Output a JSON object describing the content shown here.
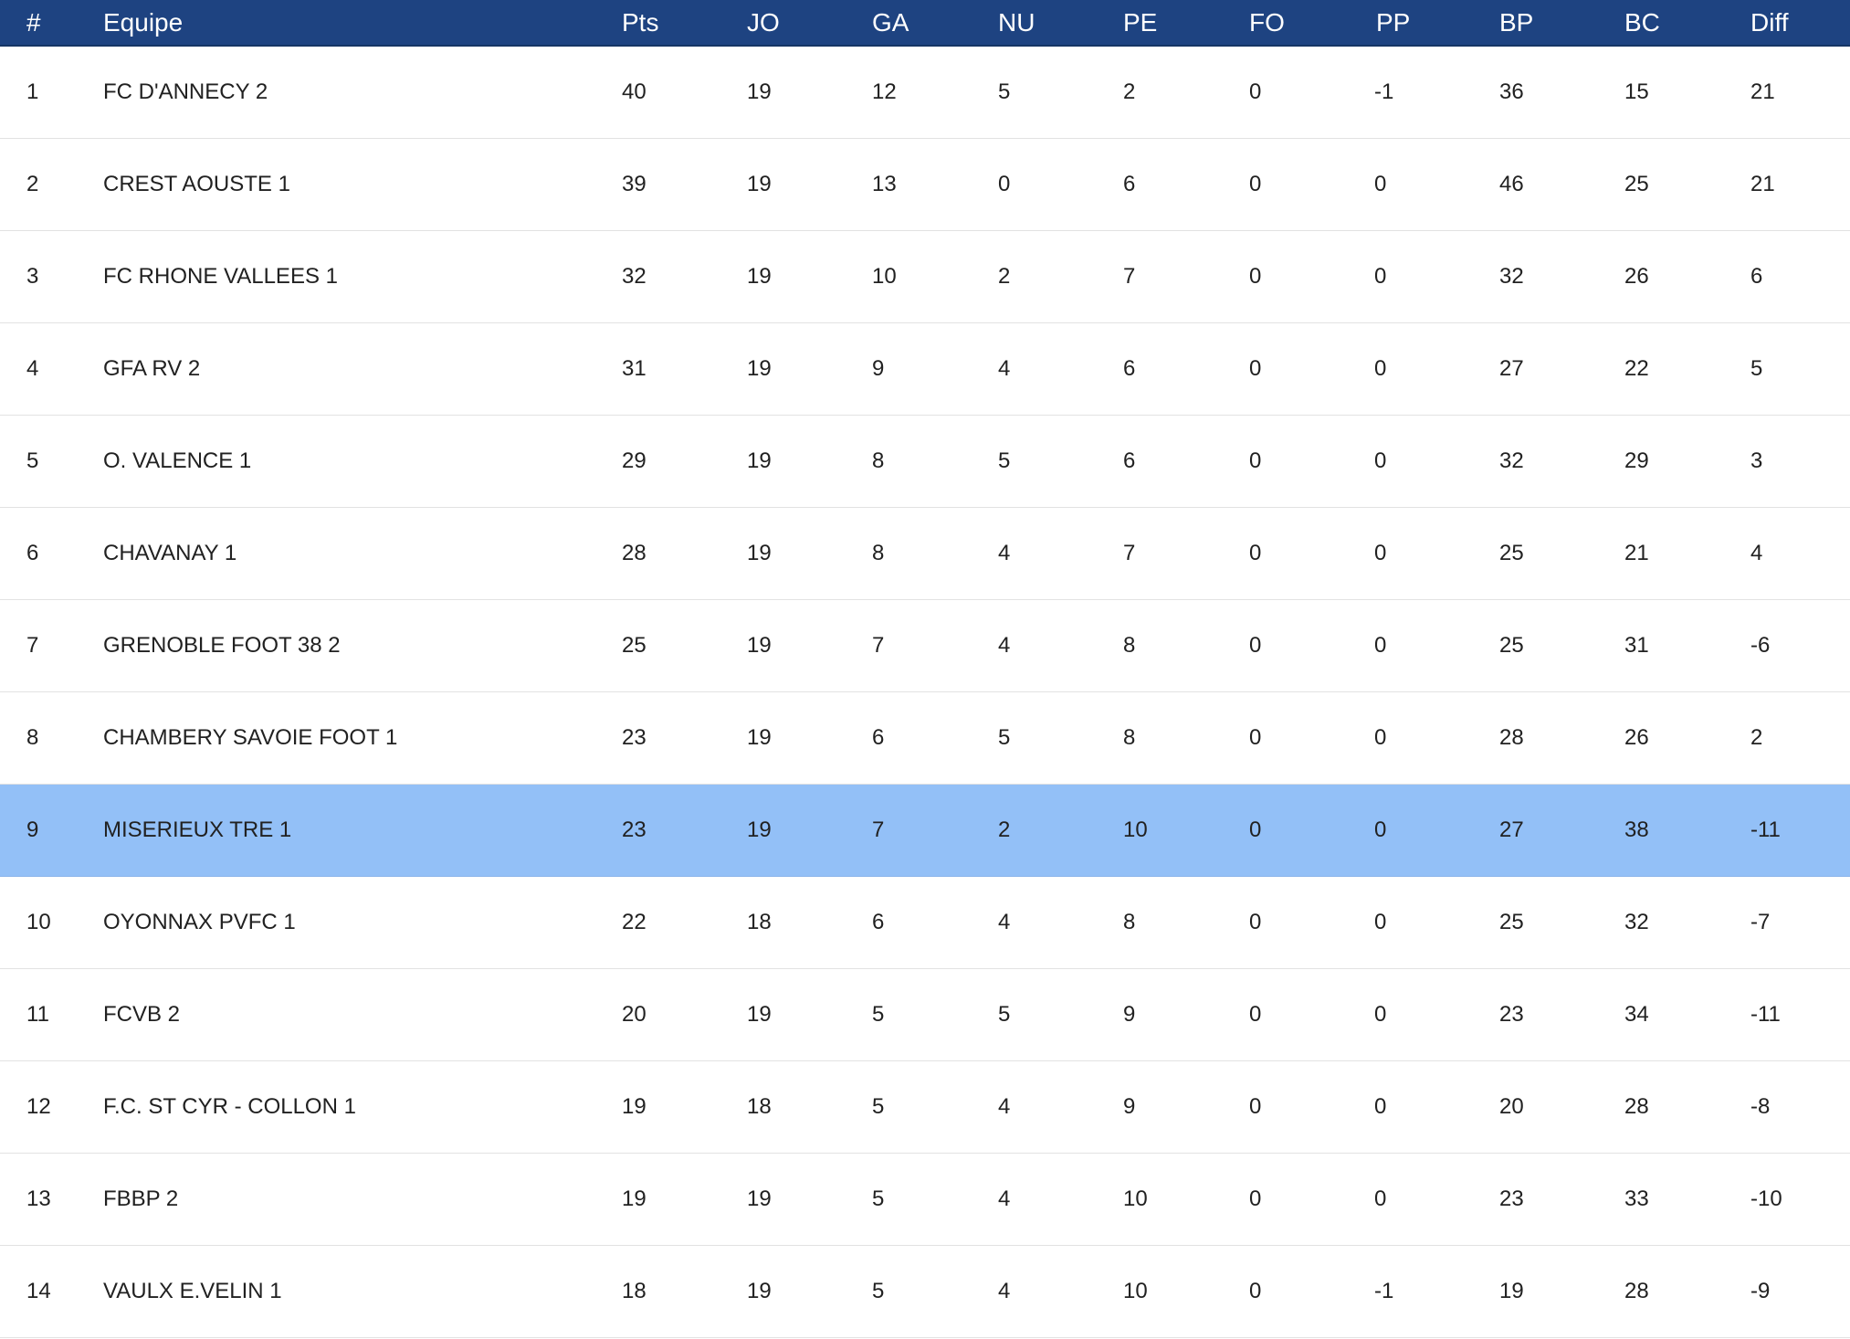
{
  "table": {
    "headers": {
      "rank": "#",
      "team": "Equipe",
      "pts": "Pts",
      "jo": "JO",
      "ga": "GA",
      "nu": "NU",
      "pe": "PE",
      "fo": "FO",
      "pp": "PP",
      "bp": "BP",
      "bc": "BC",
      "diff": "Diff"
    },
    "highlight_rank": "9",
    "rows": [
      {
        "rank": "1",
        "team": "FC D'ANNECY 2",
        "pts": "40",
        "jo": "19",
        "ga": "12",
        "nu": "5",
        "pe": "2",
        "fo": "0",
        "pp": "-1",
        "bp": "36",
        "bc": "15",
        "diff": "21"
      },
      {
        "rank": "2",
        "team": "CREST AOUSTE 1",
        "pts": "39",
        "jo": "19",
        "ga": "13",
        "nu": "0",
        "pe": "6",
        "fo": "0",
        "pp": "0",
        "bp": "46",
        "bc": "25",
        "diff": "21"
      },
      {
        "rank": "3",
        "team": "FC RHONE VALLEES 1",
        "pts": "32",
        "jo": "19",
        "ga": "10",
        "nu": "2",
        "pe": "7",
        "fo": "0",
        "pp": "0",
        "bp": "32",
        "bc": "26",
        "diff": "6"
      },
      {
        "rank": "4",
        "team": "GFA RV 2",
        "pts": "31",
        "jo": "19",
        "ga": "9",
        "nu": "4",
        "pe": "6",
        "fo": "0",
        "pp": "0",
        "bp": "27",
        "bc": "22",
        "diff": "5"
      },
      {
        "rank": "5",
        "team": "O. VALENCE 1",
        "pts": "29",
        "jo": "19",
        "ga": "8",
        "nu": "5",
        "pe": "6",
        "fo": "0",
        "pp": "0",
        "bp": "32",
        "bc": "29",
        "diff": "3"
      },
      {
        "rank": "6",
        "team": "CHAVANAY 1",
        "pts": "28",
        "jo": "19",
        "ga": "8",
        "nu": "4",
        "pe": "7",
        "fo": "0",
        "pp": "0",
        "bp": "25",
        "bc": "21",
        "diff": "4"
      },
      {
        "rank": "7",
        "team": "GRENOBLE FOOT 38 2",
        "pts": "25",
        "jo": "19",
        "ga": "7",
        "nu": "4",
        "pe": "8",
        "fo": "0",
        "pp": "0",
        "bp": "25",
        "bc": "31",
        "diff": "-6"
      },
      {
        "rank": "8",
        "team": "CHAMBERY SAVOIE FOOT 1",
        "pts": "23",
        "jo": "19",
        "ga": "6",
        "nu": "5",
        "pe": "8",
        "fo": "0",
        "pp": "0",
        "bp": "28",
        "bc": "26",
        "diff": "2"
      },
      {
        "rank": "9",
        "team": "MISERIEUX TRE 1",
        "pts": "23",
        "jo": "19",
        "ga": "7",
        "nu": "2",
        "pe": "10",
        "fo": "0",
        "pp": "0",
        "bp": "27",
        "bc": "38",
        "diff": "-11"
      },
      {
        "rank": "10",
        "team": "OYONNAX PVFC 1",
        "pts": "22",
        "jo": "18",
        "ga": "6",
        "nu": "4",
        "pe": "8",
        "fo": "0",
        "pp": "0",
        "bp": "25",
        "bc": "32",
        "diff": "-7"
      },
      {
        "rank": "11",
        "team": "FCVB 2",
        "pts": "20",
        "jo": "19",
        "ga": "5",
        "nu": "5",
        "pe": "9",
        "fo": "0",
        "pp": "0",
        "bp": "23",
        "bc": "34",
        "diff": "-11"
      },
      {
        "rank": "12",
        "team": "F.C. ST CYR - COLLON 1",
        "pts": "19",
        "jo": "18",
        "ga": "5",
        "nu": "4",
        "pe": "9",
        "fo": "0",
        "pp": "0",
        "bp": "20",
        "bc": "28",
        "diff": "-8"
      },
      {
        "rank": "13",
        "team": "FBBP 2",
        "pts": "19",
        "jo": "19",
        "ga": "5",
        "nu": "4",
        "pe": "10",
        "fo": "0",
        "pp": "0",
        "bp": "23",
        "bc": "33",
        "diff": "-10"
      },
      {
        "rank": "14",
        "team": "VAULX E.VELIN 1",
        "pts": "18",
        "jo": "19",
        "ga": "5",
        "nu": "4",
        "pe": "10",
        "fo": "0",
        "pp": "-1",
        "bp": "19",
        "bc": "28",
        "diff": "-9"
      }
    ]
  },
  "colors": {
    "header_background": "#1e4381",
    "header_text": "#ffffff",
    "highlight_row": "#93c0f7",
    "row_divider": "#e2e2e2"
  }
}
